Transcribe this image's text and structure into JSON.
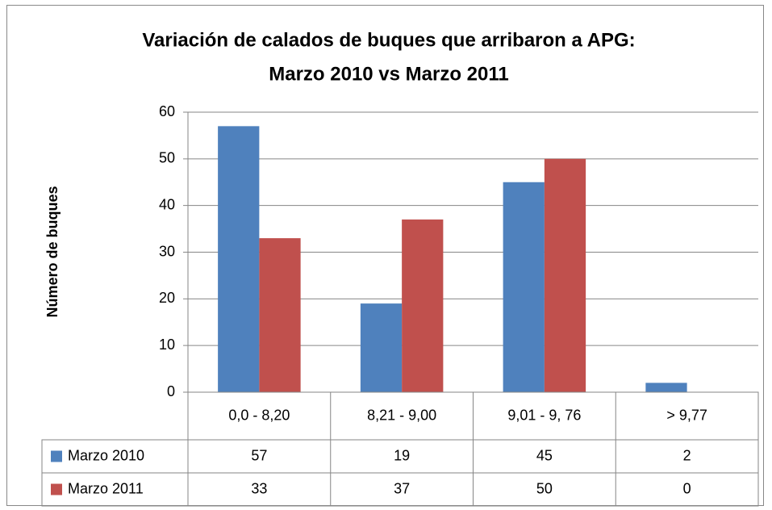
{
  "chart_data": {
    "type": "bar",
    "title": [
      "Variación de calados de buques que arribaron a APG:",
      "Marzo 2010 vs Marzo 2011"
    ],
    "y_label": "Número de buques",
    "categories": [
      "0,0 - 8,20",
      "8,21 - 9,00",
      "9,01 - 9, 76",
      "> 9,77"
    ],
    "series": [
      {
        "name": "Marzo 2010",
        "color": "#4f81bd",
        "values": [
          57,
          19,
          45,
          2
        ]
      },
      {
        "name": "Marzo 2011",
        "color": "#c0504d",
        "values": [
          33,
          37,
          50,
          0
        ]
      }
    ],
    "ylim": [
      0,
      60
    ],
    "yticks": [
      0,
      10,
      20,
      30,
      40,
      50,
      60
    ],
    "grid": true,
    "data_table": true
  }
}
